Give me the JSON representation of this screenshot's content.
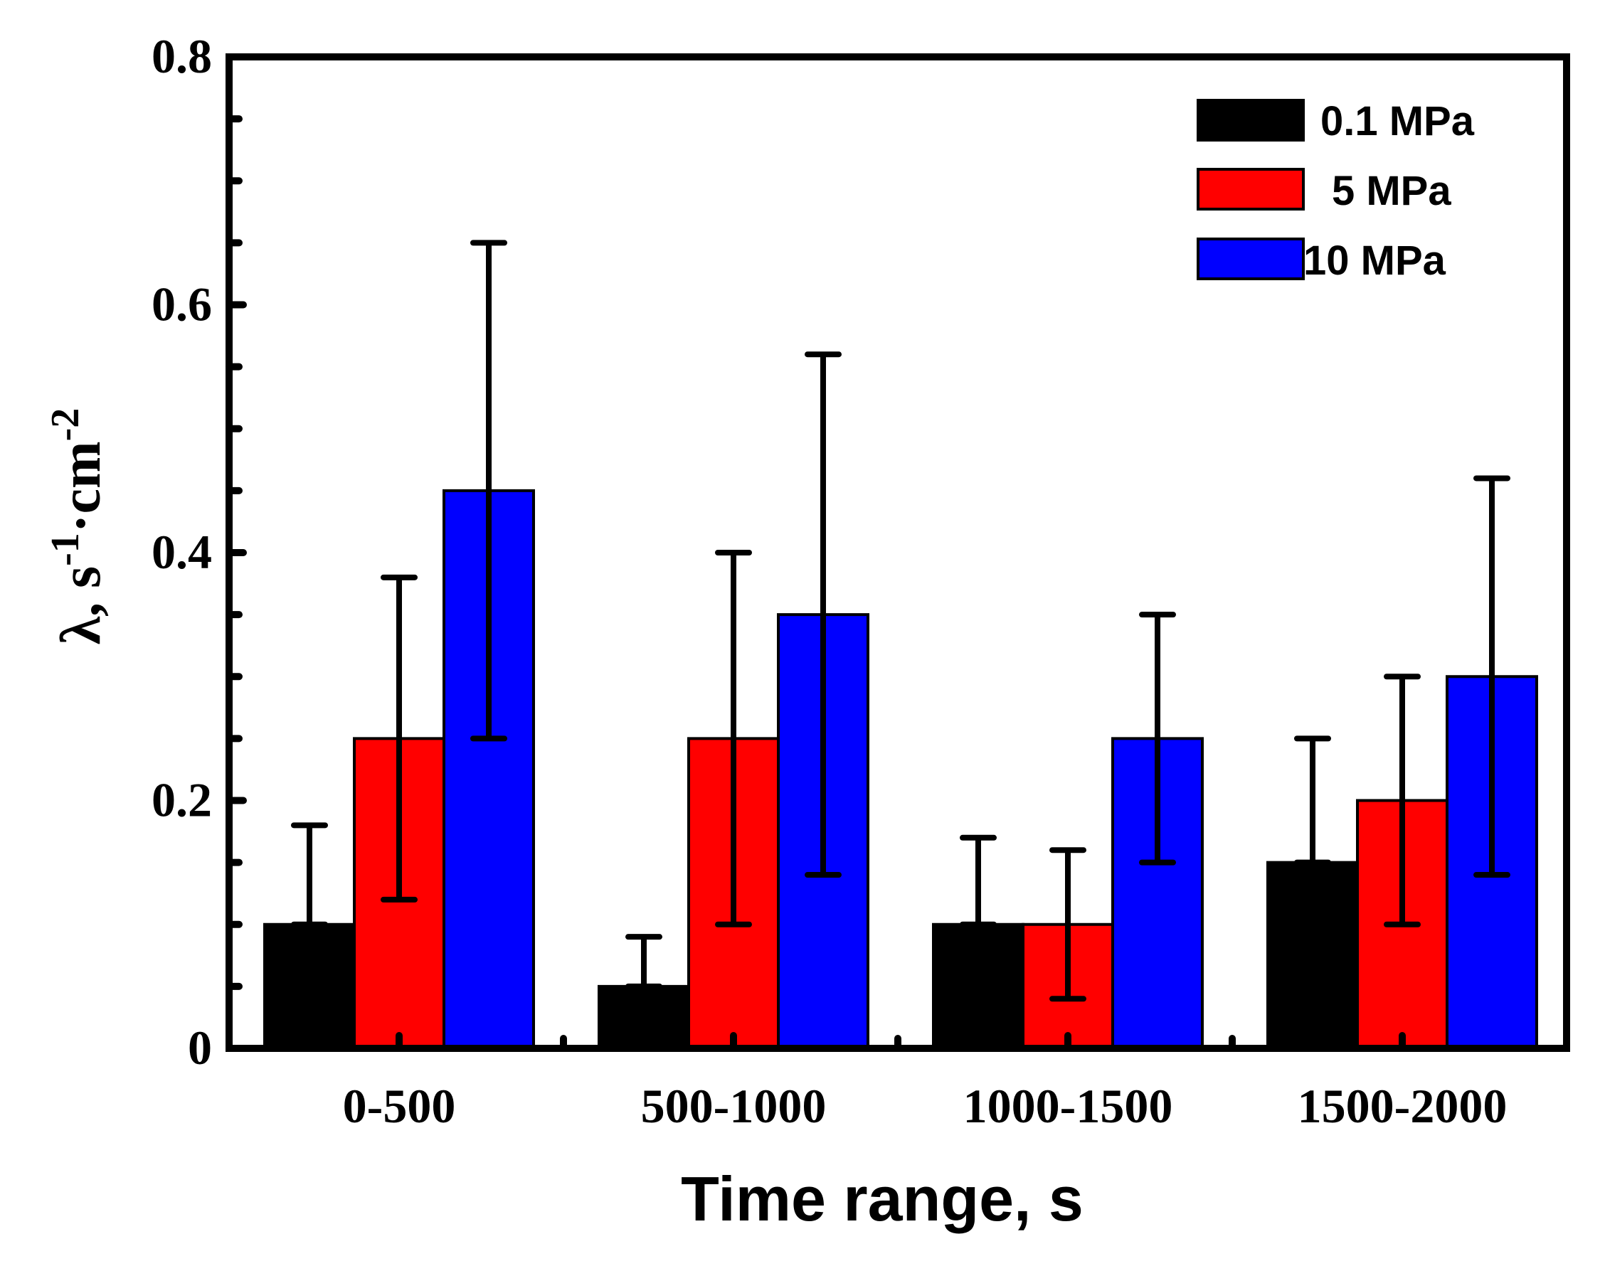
{
  "chart_data": {
    "type": "bar",
    "title": "",
    "xlabel": "Time range, s",
    "ylabel": {
      "lambda": "λ, s",
      "sup1": "-1",
      "dot_cm": "·cm",
      "sup2": "-2"
    },
    "ylim": [
      0,
      0.8
    ],
    "yticks": [
      "0",
      "0.2",
      "0.4",
      "0.6",
      "0.8"
    ],
    "ytick_values": [
      0,
      0.2,
      0.4,
      0.6,
      0.8
    ],
    "categories": [
      "0-500",
      "500-1000",
      "1000-1500",
      "1500-2000"
    ],
    "series": [
      {
        "name": "0.1 MPa",
        "color": "#000000",
        "values": [
          0.1,
          0.05,
          0.1,
          0.15
        ],
        "err_upper": [
          0.18,
          0.09,
          0.17,
          0.25
        ],
        "err_lower": [
          0.1,
          0.05,
          0.1,
          0.15
        ]
      },
      {
        "name": "5 MPa",
        "color": "#ff0000",
        "values": [
          0.25,
          0.25,
          0.1,
          0.2
        ],
        "err_upper": [
          0.38,
          0.4,
          0.16,
          0.3
        ],
        "err_lower": [
          0.12,
          0.1,
          0.04,
          0.1
        ]
      },
      {
        "name": "10 MPa",
        "color": "#0000ff",
        "values": [
          0.45,
          0.35,
          0.25,
          0.3
        ],
        "err_upper": [
          0.65,
          0.56,
          0.35,
          0.46
        ],
        "err_lower": [
          0.25,
          0.14,
          0.15,
          0.14
        ]
      }
    ],
    "legend": {
      "position": "top-right"
    },
    "grid": false
  }
}
